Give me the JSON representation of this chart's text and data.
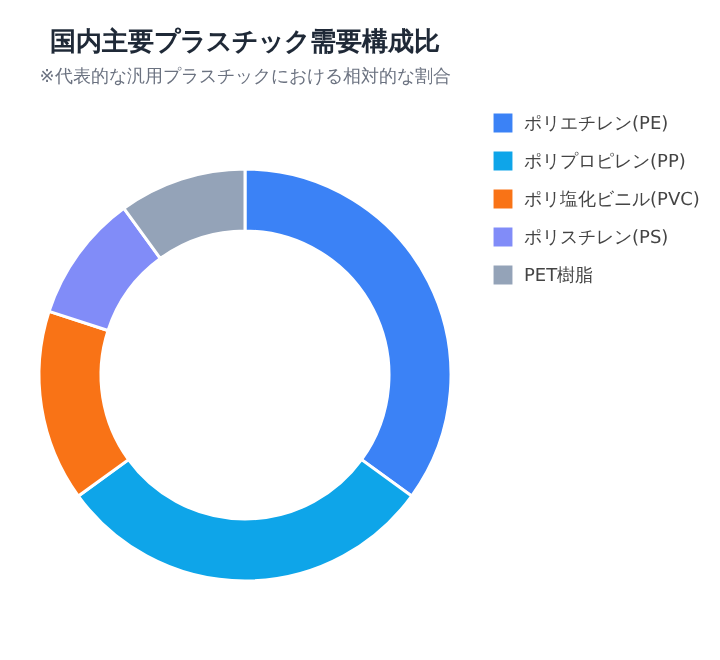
{
  "chart_data": {
    "type": "donut",
    "title": "国内主要プラスチック需要構成比",
    "subtitle": "※代表的な汎用プラスチックにおける相対的な割合",
    "categories": [
      "ポリエチレン(PE)",
      "ポリプロピレン(PP)",
      "ポリ塩化ビニル(PVC)",
      "ポリスチレン(PS)",
      "PET樹脂"
    ],
    "values": [
      35,
      30,
      15,
      10,
      10
    ],
    "colors": [
      "#3b82f6",
      "#0ea5e9",
      "#f97316",
      "#818cf8",
      "#94a3b8"
    ],
    "legend": "right"
  }
}
